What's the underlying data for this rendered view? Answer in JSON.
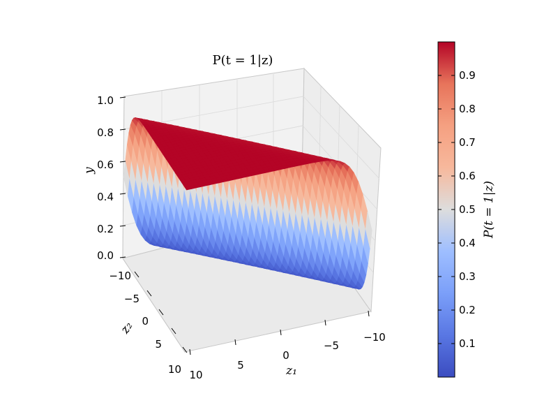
{
  "chart_data": {
    "type": "surface",
    "title": "P(t = 1|z)",
    "function": "1 / (1 + exp(-(z1 + z2)))",
    "x": {
      "label": "z₁",
      "range": [
        -10,
        10
      ],
      "ticks": [
        "10",
        "5",
        "0",
        "−5",
        "−10"
      ]
    },
    "y": {
      "label": "z₂",
      "range": [
        -10,
        10
      ],
      "ticks": [
        "−10",
        "−5",
        "0",
        "5",
        "10"
      ]
    },
    "z": {
      "label": "y",
      "range": [
        0,
        1
      ],
      "ticks": [
        "0.0",
        "0.2",
        "0.4",
        "0.6",
        "0.8",
        "1.0"
      ]
    },
    "colorbar": {
      "label": "P(t = 1|z)",
      "colormap": "coolwarm",
      "range": [
        0,
        1
      ],
      "ticks": [
        "0.1",
        "0.2",
        "0.3",
        "0.4",
        "0.5",
        "0.6",
        "0.7",
        "0.8",
        "0.9"
      ]
    },
    "grid": true
  },
  "colors": {
    "low": "#3b4cc0",
    "mid": "#dddddd",
    "high": "#b40426",
    "pane": "#f2f2f2"
  }
}
